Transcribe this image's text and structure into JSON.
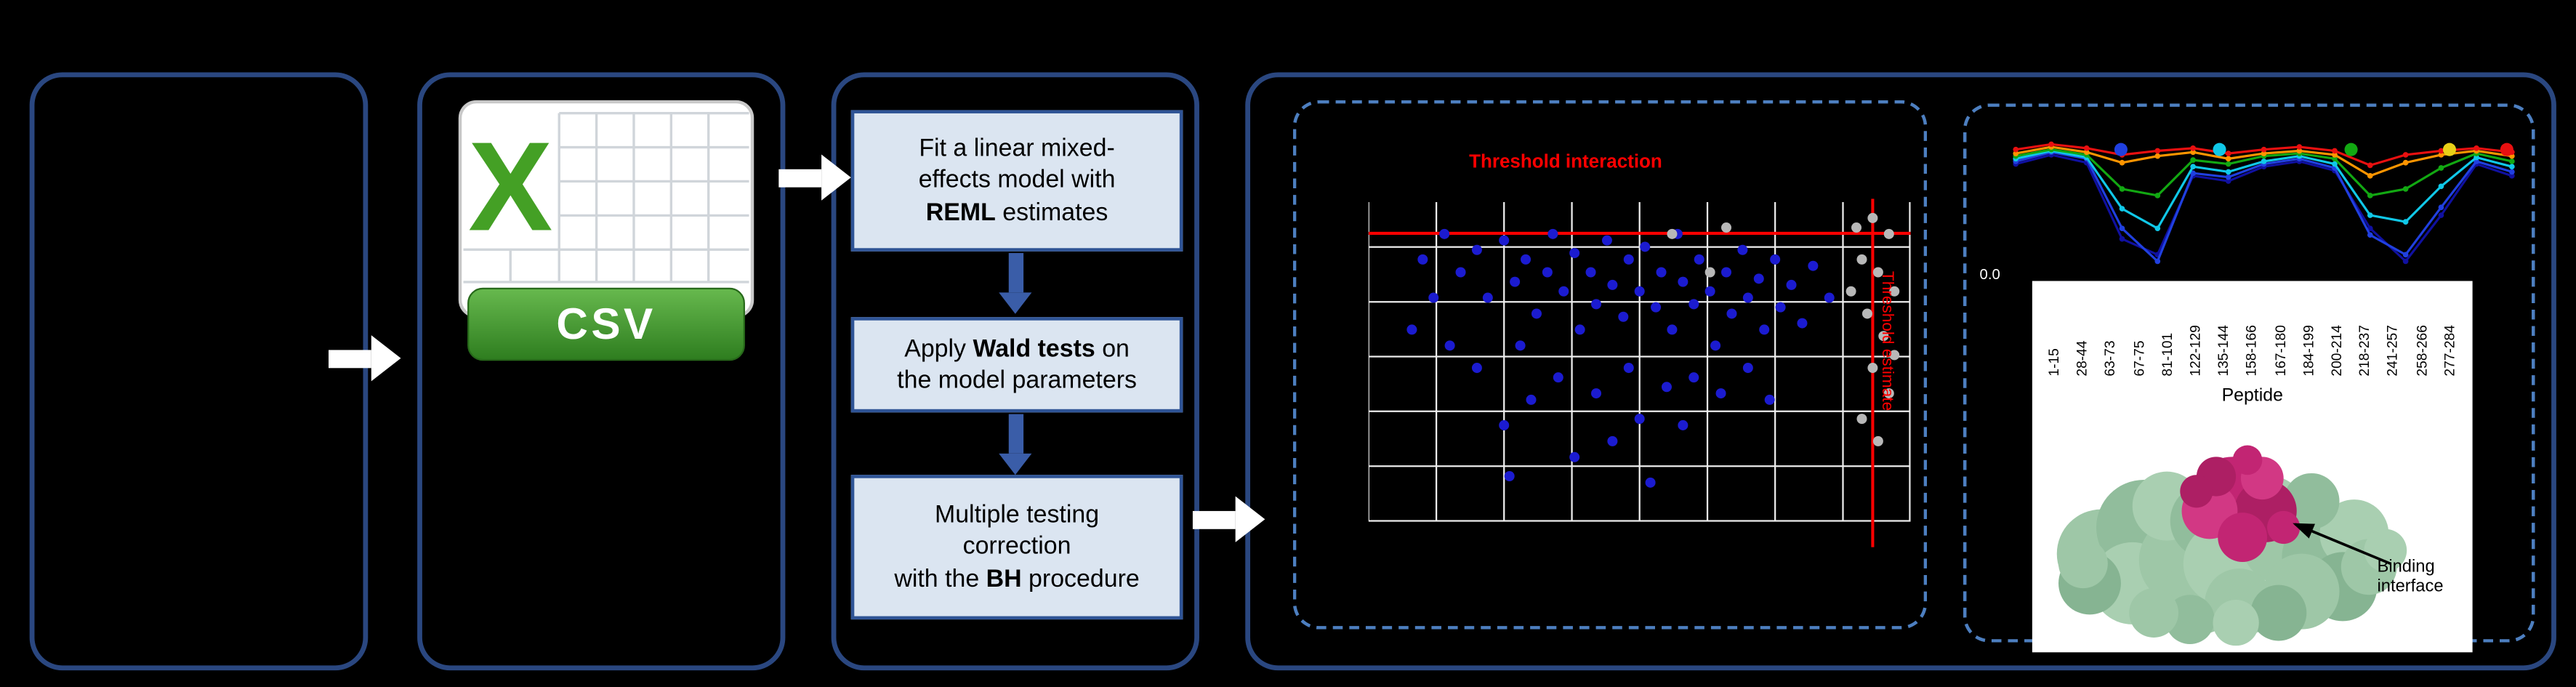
{
  "colors": {
    "background": "#000000",
    "panel_border": "#2a4780",
    "dashed_border": "#4d7fc0",
    "step_fill": "#dbe5f1",
    "step_border": "#2f5496",
    "step_arrow": "#3a5da8",
    "flow_arrow": "#ffffff",
    "threshold_red": "#ff0000",
    "csv_green": "#44a025",
    "protein_surface": "#9ec7a7",
    "binding_interface_pink": "#c22573"
  },
  "workflow": {
    "csv_label": "CSV",
    "steps": [
      {
        "pre": "Fit a linear mixed-\neffects model with\n",
        "bold": "REML",
        "post": " estimates"
      },
      {
        "pre": "Apply ",
        "bold": "Wald tests",
        "post": " on\nthe model parameters"
      },
      {
        "pre": "Multiple testing\ncorrection\nwith the ",
        "bold": "BH",
        "post": " procedure"
      }
    ]
  },
  "chart_data": [
    {
      "type": "scatter",
      "title": "Threshold interaction",
      "right_axis_label": "Threshold estimate",
      "grid": {
        "cols": 8,
        "rows": 6,
        "grid_on": true
      },
      "threshold_h_frac": 0.125,
      "threshold_v_frac": 0.93,
      "series": [
        {
          "name": "significant-peptides",
          "color": "#1b1bd0",
          "points": [
            [
              0.1,
              0.18
            ],
            [
              0.14,
              0.1
            ],
            [
              0.17,
              0.22
            ],
            [
              0.2,
              0.15
            ],
            [
              0.22,
              0.3
            ],
            [
              0.25,
              0.12
            ],
            [
              0.27,
              0.25
            ],
            [
              0.29,
              0.18
            ],
            [
              0.31,
              0.35
            ],
            [
              0.33,
              0.22
            ],
            [
              0.34,
              0.1
            ],
            [
              0.36,
              0.28
            ],
            [
              0.38,
              0.16
            ],
            [
              0.39,
              0.4
            ],
            [
              0.41,
              0.22
            ],
            [
              0.42,
              0.32
            ],
            [
              0.44,
              0.12
            ],
            [
              0.45,
              0.26
            ],
            [
              0.47,
              0.36
            ],
            [
              0.48,
              0.18
            ],
            [
              0.5,
              0.28
            ],
            [
              0.51,
              0.14
            ],
            [
              0.53,
              0.33
            ],
            [
              0.54,
              0.22
            ],
            [
              0.56,
              0.4
            ],
            [
              0.57,
              0.1
            ],
            [
              0.58,
              0.25
            ],
            [
              0.6,
              0.32
            ],
            [
              0.61,
              0.18
            ],
            [
              0.63,
              0.28
            ],
            [
              0.64,
              0.45
            ],
            [
              0.66,
              0.22
            ],
            [
              0.67,
              0.35
            ],
            [
              0.69,
              0.15
            ],
            [
              0.7,
              0.3
            ],
            [
              0.72,
              0.24
            ],
            [
              0.73,
              0.4
            ],
            [
              0.75,
              0.18
            ],
            [
              0.76,
              0.33
            ],
            [
              0.78,
              0.26
            ],
            [
              0.8,
              0.38
            ],
            [
              0.82,
              0.2
            ],
            [
              0.35,
              0.55
            ],
            [
              0.42,
              0.6
            ],
            [
              0.48,
              0.52
            ],
            [
              0.55,
              0.58
            ],
            [
              0.3,
              0.62
            ],
            [
              0.25,
              0.7
            ],
            [
              0.5,
              0.68
            ],
            [
              0.6,
              0.55
            ],
            [
              0.15,
              0.45
            ],
            [
              0.2,
              0.52
            ],
            [
              0.65,
              0.6
            ],
            [
              0.7,
              0.52
            ],
            [
              0.45,
              0.75
            ],
            [
              0.38,
              0.8
            ],
            [
              0.12,
              0.3
            ],
            [
              0.08,
              0.4
            ],
            [
              0.28,
              0.45
            ],
            [
              0.58,
              0.7
            ],
            [
              0.74,
              0.62
            ],
            [
              0.85,
              0.3
            ],
            [
              0.26,
              0.86
            ],
            [
              0.52,
              0.88
            ]
          ]
        },
        {
          "name": "non-significant-peptides",
          "color": "#b8b8b8",
          "points": [
            [
              0.9,
              0.08
            ],
            [
              0.93,
              0.05
            ],
            [
              0.96,
              0.1
            ],
            [
              0.91,
              0.18
            ],
            [
              0.94,
              0.22
            ],
            [
              0.97,
              0.28
            ],
            [
              0.92,
              0.35
            ],
            [
              0.95,
              0.42
            ],
            [
              0.93,
              0.52
            ],
            [
              0.96,
              0.6
            ],
            [
              0.91,
              0.68
            ],
            [
              0.94,
              0.75
            ],
            [
              0.97,
              0.48
            ],
            [
              0.89,
              0.28
            ],
            [
              0.56,
              0.1
            ],
            [
              0.63,
              0.22
            ],
            [
              0.66,
              0.08
            ]
          ]
        }
      ]
    },
    {
      "type": "line",
      "y_tick": "0.0",
      "xlabel": "Peptide",
      "categories": [
        "1-15",
        "28-44",
        "63-73",
        "67-75",
        "81-101",
        "122-129",
        "135-144",
        "158-166",
        "167-180",
        "184-199",
        "200-214",
        "218-237",
        "241-257",
        "258-266",
        "277-284"
      ],
      "legend_dots": [
        {
          "color": "#2040e0",
          "x": 0.223
        },
        {
          "color": "#10c8e8",
          "x": 0.414
        },
        {
          "color": "#12a812",
          "x": 0.669
        },
        {
          "color": "#e8d018",
          "x": 0.86
        },
        {
          "color": "#e81010",
          "x": 0.971
        }
      ],
      "series": [
        {
          "name": "navy",
          "color": "#1010a0",
          "values": [
            0.79,
            0.86,
            0.8,
            0.22,
            0.1,
            0.7,
            0.66,
            0.77,
            0.81,
            0.74,
            0.3,
            0.05,
            0.4,
            0.79,
            0.7
          ]
        },
        {
          "name": "blue",
          "color": "#2040e0",
          "values": [
            0.81,
            0.88,
            0.83,
            0.3,
            0.05,
            0.72,
            0.69,
            0.79,
            0.83,
            0.76,
            0.25,
            0.1,
            0.46,
            0.81,
            0.73
          ]
        },
        {
          "name": "cyan",
          "color": "#10c8e8",
          "values": [
            0.83,
            0.89,
            0.84,
            0.45,
            0.3,
            0.77,
            0.73,
            0.81,
            0.85,
            0.79,
            0.4,
            0.35,
            0.62,
            0.84,
            0.77
          ]
        },
        {
          "name": "green",
          "color": "#12a812",
          "values": [
            0.85,
            0.9,
            0.86,
            0.6,
            0.55,
            0.82,
            0.79,
            0.85,
            0.87,
            0.83,
            0.55,
            0.6,
            0.76,
            0.87,
            0.81
          ]
        },
        {
          "name": "orange",
          "color": "#ff9500",
          "values": [
            0.87,
            0.92,
            0.88,
            0.8,
            0.85,
            0.88,
            0.83,
            0.87,
            0.89,
            0.86,
            0.7,
            0.8,
            0.86,
            0.89,
            0.85
          ]
        },
        {
          "name": "red",
          "color": "#e81010",
          "values": [
            0.9,
            0.94,
            0.91,
            0.86,
            0.89,
            0.91,
            0.87,
            0.9,
            0.92,
            0.89,
            0.78,
            0.86,
            0.89,
            0.91,
            0.88
          ]
        }
      ]
    }
  ],
  "annotations": {
    "binding_interface": "Binding interface"
  }
}
